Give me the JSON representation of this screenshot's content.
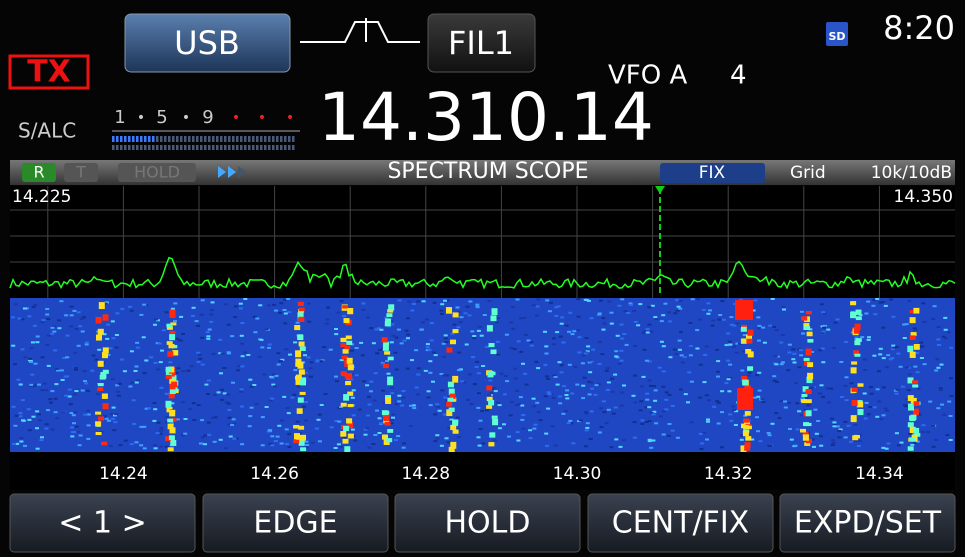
{
  "header": {
    "mode": "USB",
    "filter": "FIL1",
    "tx": "TX",
    "sd": "SD",
    "clock": "8:20",
    "vfo": "VFO A",
    "memory": "4"
  },
  "meter": {
    "label": "S/ALC",
    "scale": [
      "1",
      "5",
      "9"
    ]
  },
  "frequency": "14.310.14",
  "scope": {
    "r": "R",
    "t": "T",
    "hold": "HOLD",
    "title": "SPECTRUM SCOPE",
    "mode": "FIX",
    "grid": "Grid",
    "span": "10k/10dB",
    "lower_edge": "14.225",
    "upper_edge": "14.350",
    "axis_labels": [
      "14.24",
      "14.26",
      "14.28",
      "14.30",
      "14.32",
      "14.34"
    ]
  },
  "buttons": [
    "< 1 >",
    "EDGE",
    "HOLD",
    "CENT/FIX",
    "EXPD/SET"
  ]
}
